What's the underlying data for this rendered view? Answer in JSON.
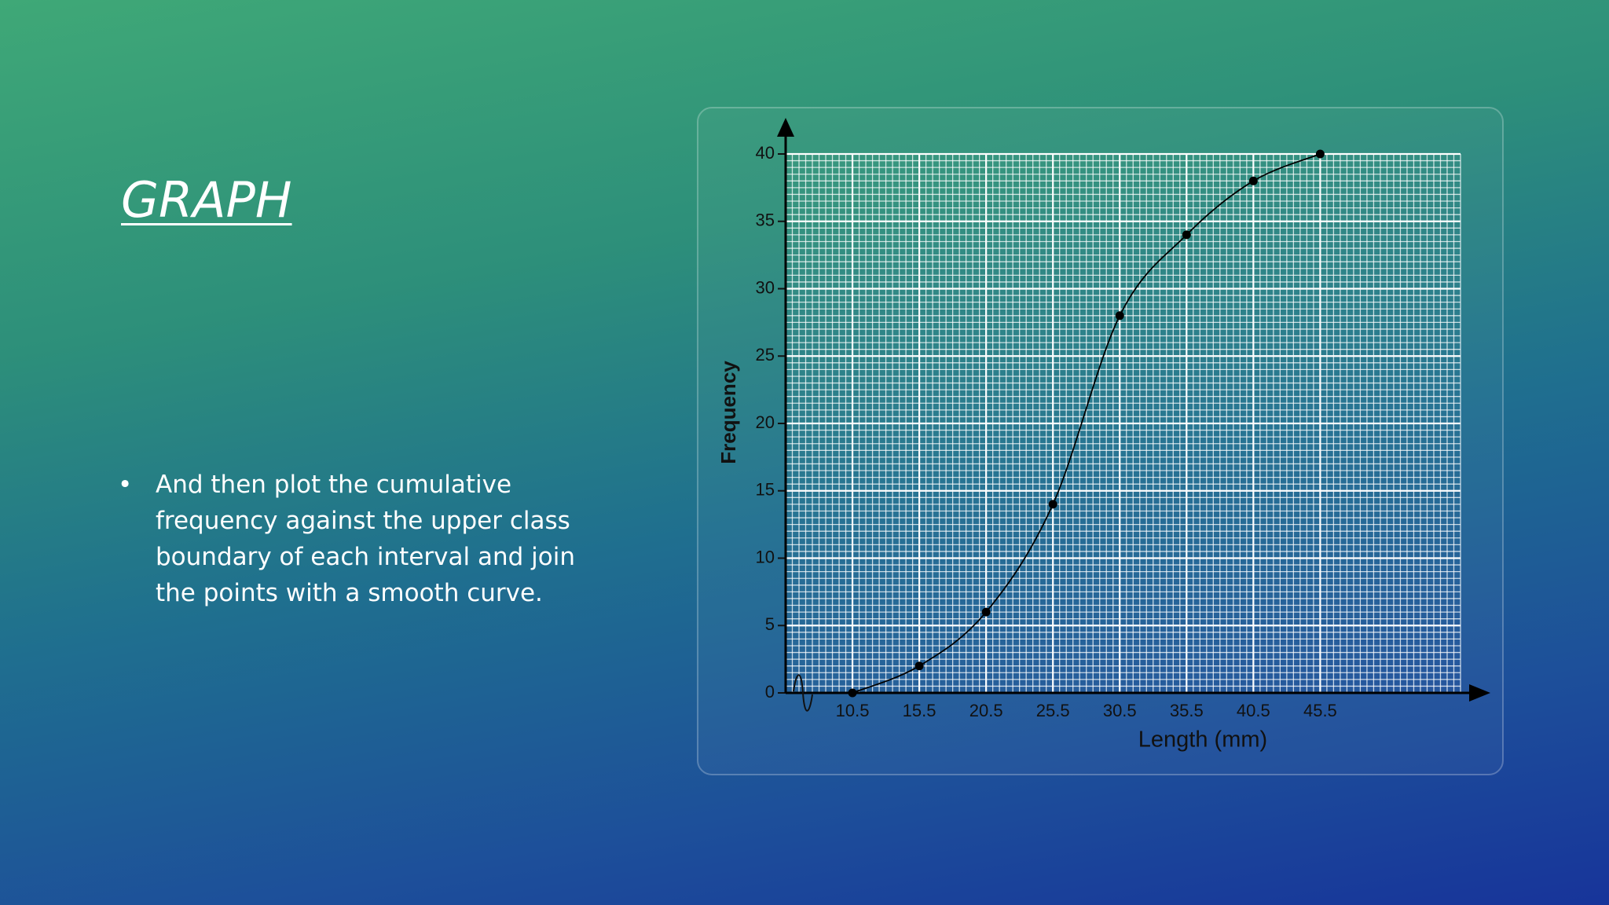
{
  "slide": {
    "title": "GRAPH",
    "bullets": [
      "And then plot the cumulative frequency against the upper class boundary of each interval and join the points with a smooth curve."
    ]
  },
  "chart_data": {
    "type": "line",
    "xlabel": "Length (mm)",
    "ylabel": "Frequency",
    "x": [
      10.5,
      15.5,
      20.5,
      25.5,
      30.5,
      35.5,
      40.5,
      45.5
    ],
    "series": [
      {
        "color": "#000000",
        "values": [
          0,
          2,
          6,
          14,
          28,
          34,
          38,
          40
        ]
      }
    ],
    "xlim": [
      5.5,
      56
    ],
    "xticks": [
      10.5,
      15.5,
      20.5,
      25.5,
      30.5,
      35.5,
      40.5,
      45.5
    ],
    "ylim": [
      0,
      40
    ],
    "yticks": [
      0,
      5,
      10,
      15,
      20,
      25,
      30,
      35,
      40
    ],
    "grid": true,
    "smooth": true
  }
}
